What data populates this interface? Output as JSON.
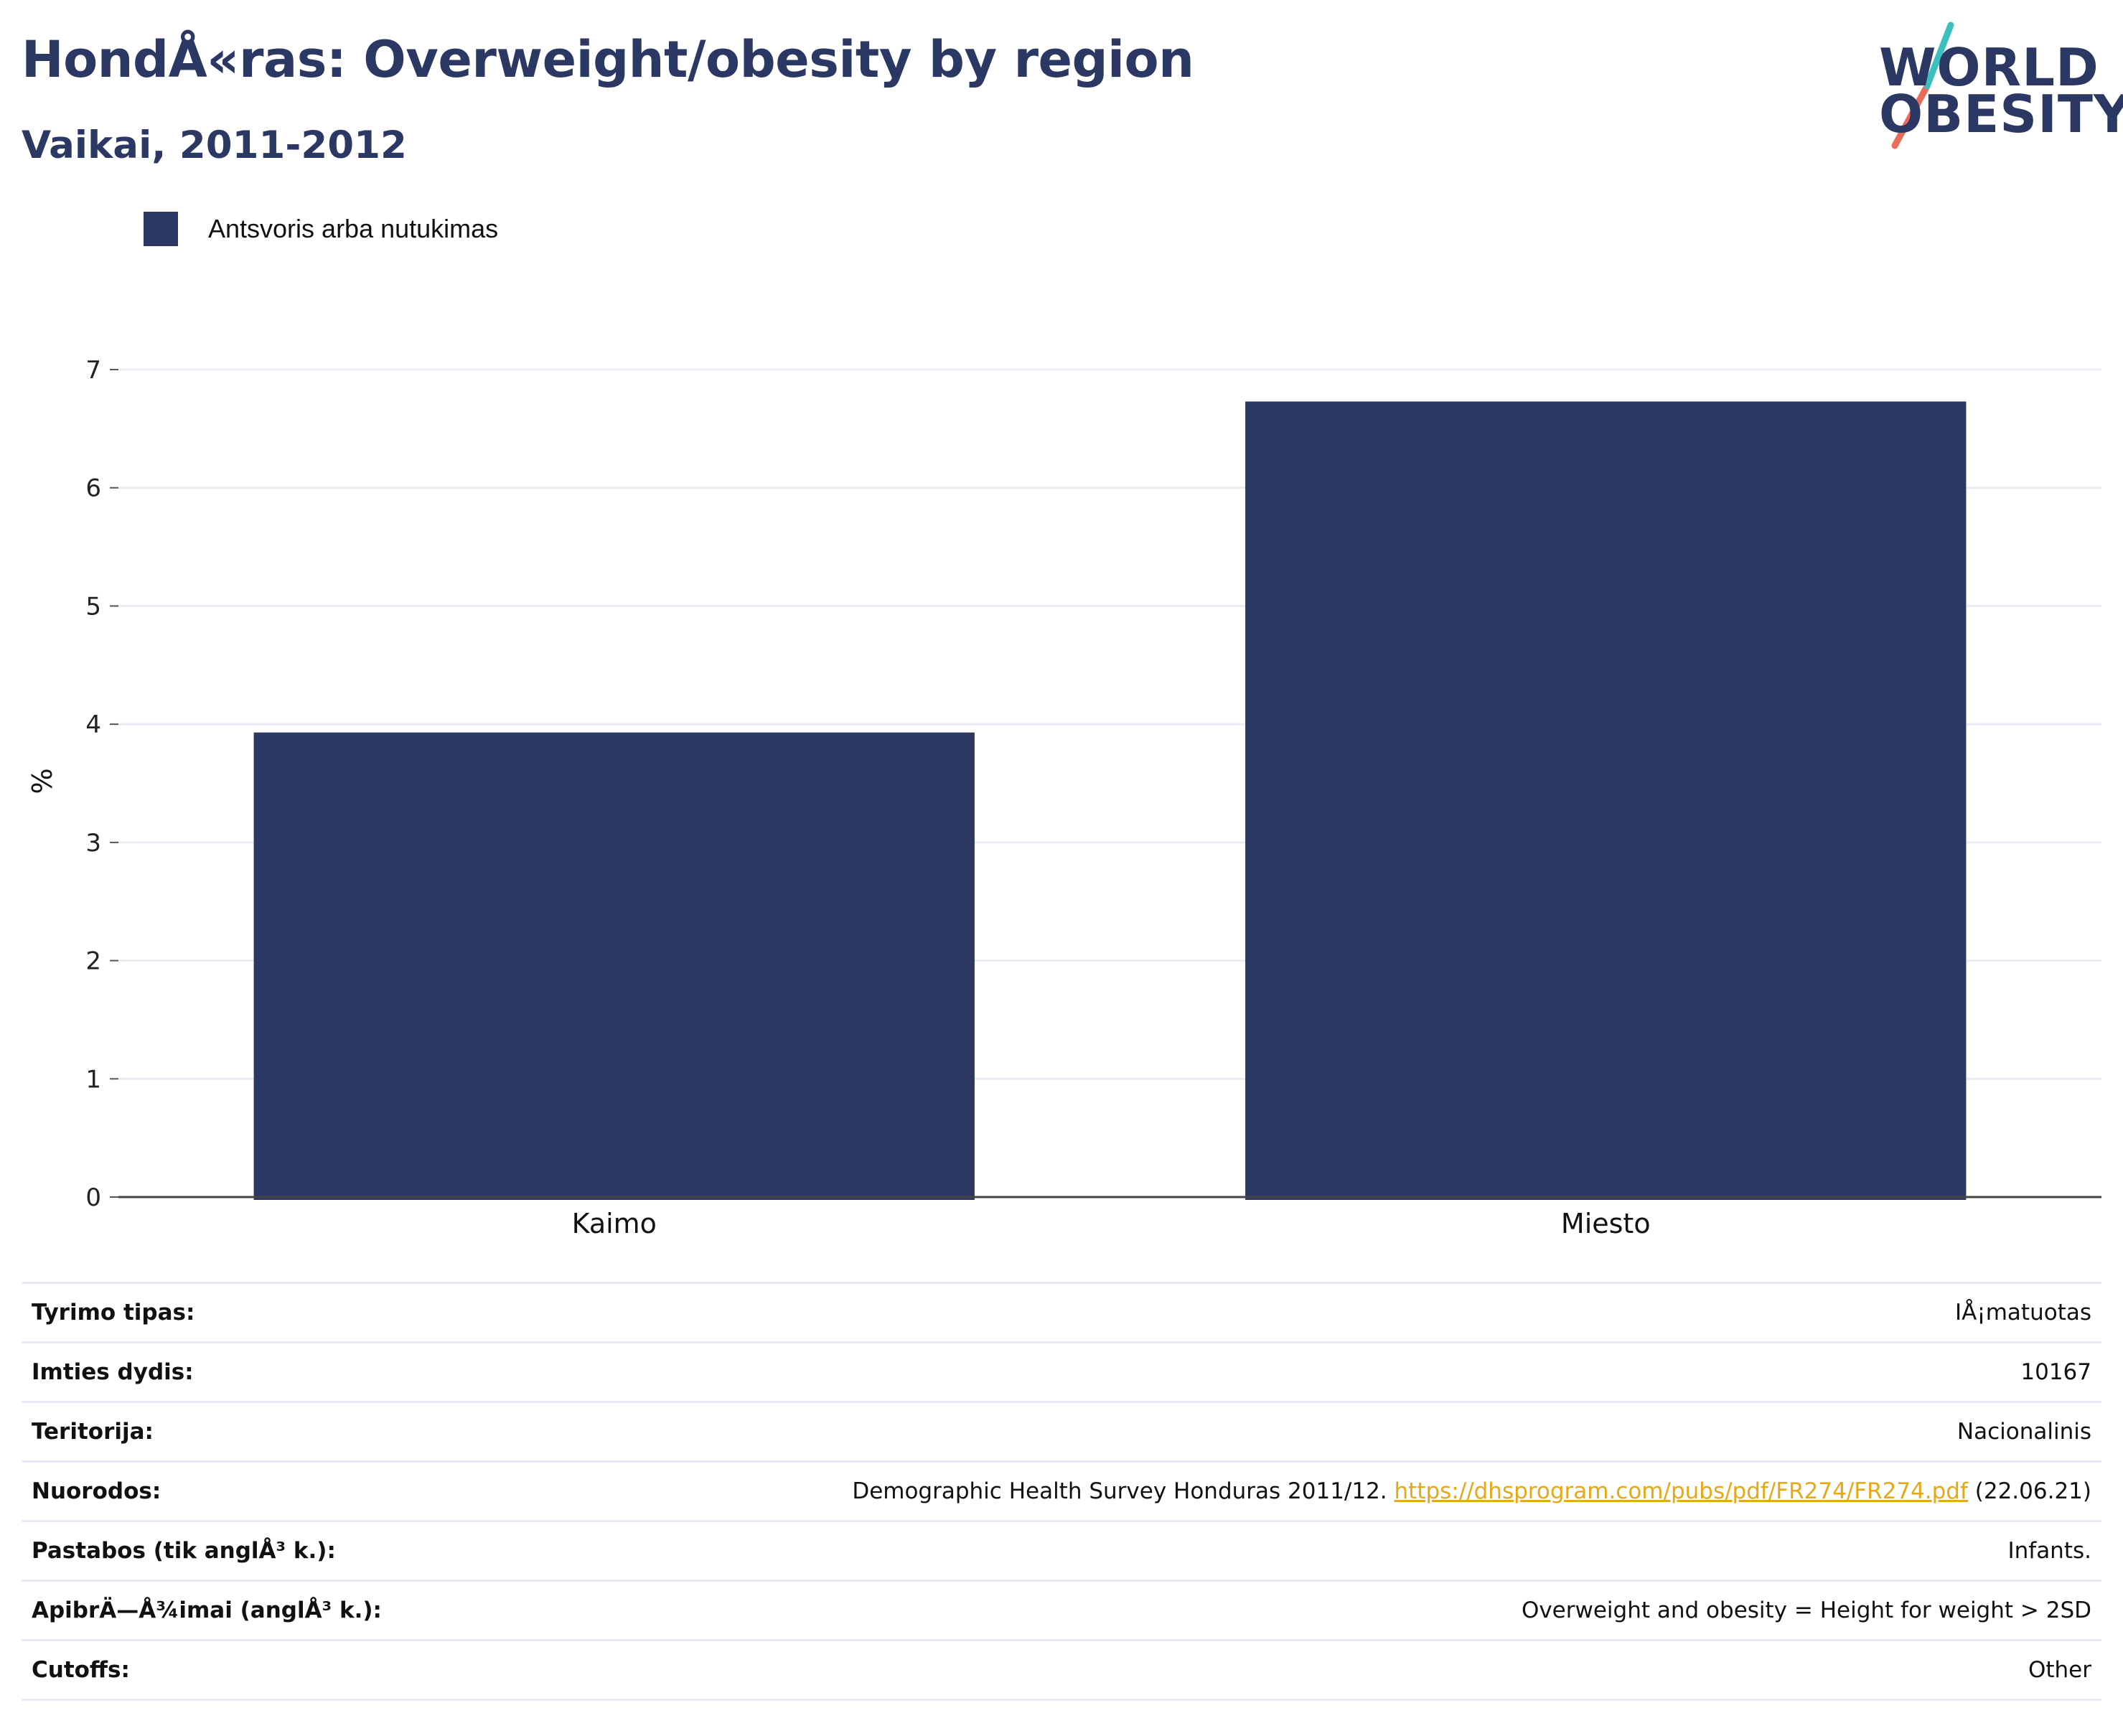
{
  "title": "HondÅ«ras: Overweight/obesity by region",
  "subtitle": "Vaikai, 2011-2012",
  "logo": {
    "line1": "WORLD",
    "line2": "OBESITY"
  },
  "legend": {
    "label": "Antsvoris arba nutukimas"
  },
  "chart_data": {
    "type": "bar",
    "categories": [
      "Kaimo",
      "Miesto"
    ],
    "series": [
      {
        "name": "Antsvoris arba nutukimas",
        "values": [
          3.93,
          6.73
        ],
        "color": "#2b3863"
      }
    ],
    "ylabel": "%",
    "ylim": [
      0,
      7
    ],
    "yticks": [
      0,
      1,
      2,
      3,
      4,
      5,
      6,
      7
    ],
    "grid": true,
    "legend_position": "top-left"
  },
  "meta": [
    {
      "key": "Tyrimo tipas:",
      "value": "IÅ¡matuotas"
    },
    {
      "key": "Imties dydis:",
      "value": "10167"
    },
    {
      "key": "Teritorija:",
      "value": "Nacionalinis"
    },
    {
      "key": "Nuorodos:",
      "value": "Demographic Health Survey Honduras 2011/12. ",
      "link": "https://dhsprogram.com/pubs/pdf/FR274/FR274.pdf",
      "suffix": " (22.06.21)"
    },
    {
      "key": "Pastabos (tik anglÅ³ k.):",
      "value": "Infants."
    },
    {
      "key": "ApibrÄ—Å¾imai (anglÅ³ k.):",
      "value": "Overweight and obesity = Height for weight > 2SD"
    },
    {
      "key": "Cutoffs:",
      "value": "Other"
    }
  ],
  "colors": {
    "brand_navy": "#2b3863",
    "logo_teal": "#3bbfbf",
    "logo_coral": "#ea6b5a",
    "link": "#e6a817"
  }
}
